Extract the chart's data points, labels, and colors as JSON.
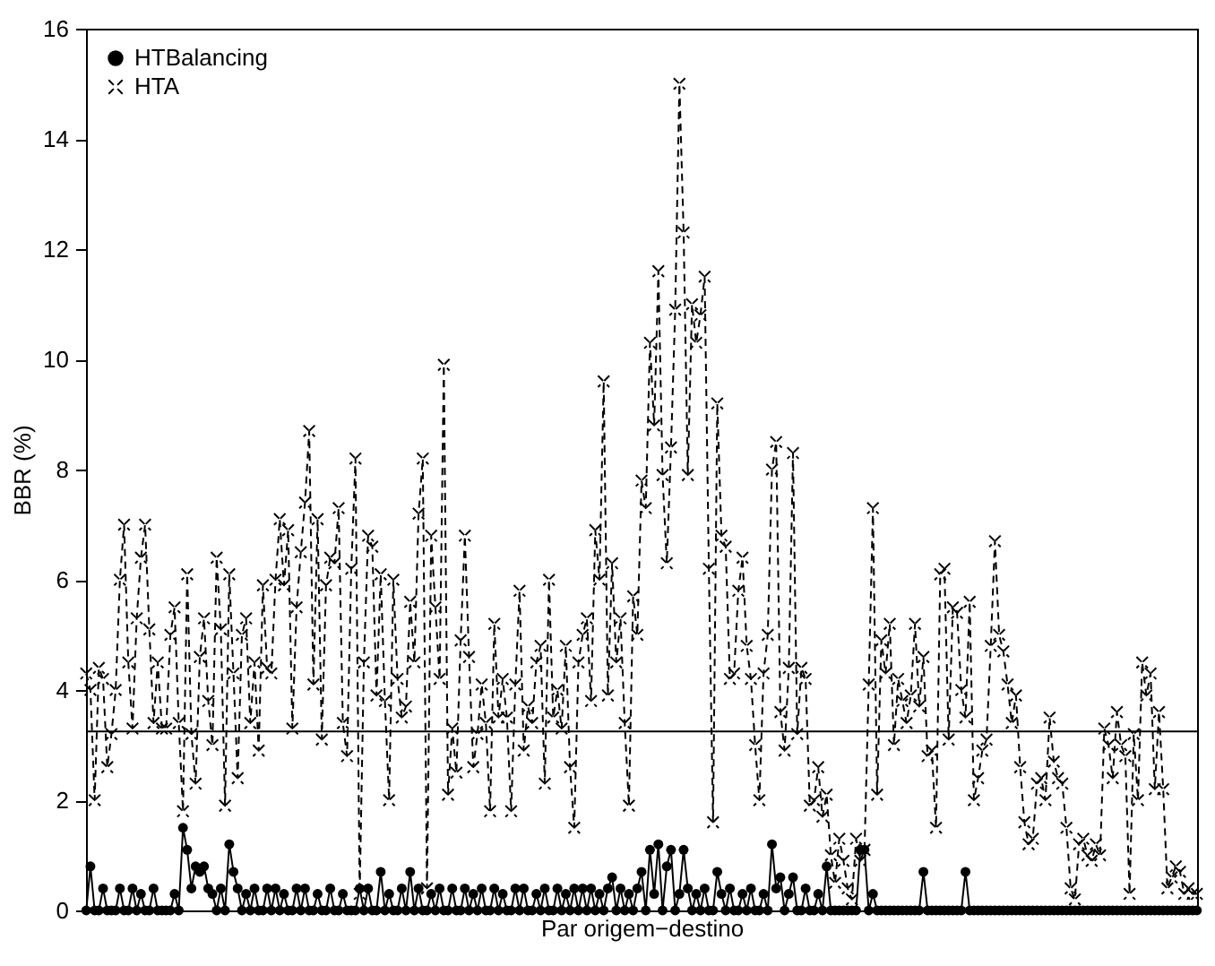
{
  "chart_data": {
    "type": "line",
    "xlabel": "Par origem−destino",
    "ylabel": "BBR (%)",
    "ylim": [
      0,
      16
    ],
    "yticks": [
      0,
      2,
      4,
      6,
      8,
      10,
      12,
      14,
      16
    ],
    "grid": false,
    "legend": "top left",
    "ref_lines": [
      {
        "axis": "y",
        "value": 3.25,
        "color": "#000000",
        "line_style": "solid"
      }
    ],
    "categories": [
      null,
      null,
      null,
      null,
      null,
      null,
      null,
      null,
      null,
      null,
      null,
      null,
      null,
      null,
      null,
      null,
      null,
      null,
      null,
      null,
      null,
      null,
      null,
      null,
      null,
      null,
      null,
      null,
      null,
      null,
      null,
      null,
      null,
      null,
      null,
      null,
      null,
      null,
      null,
      null,
      null,
      null,
      null,
      null,
      null,
      null,
      null,
      null,
      null,
      null,
      null,
      null,
      null,
      null,
      null,
      null,
      null,
      null,
      null,
      null,
      null,
      null,
      null,
      null,
      null,
      null,
      null,
      null,
      null,
      null,
      null,
      null,
      null,
      null,
      null,
      null,
      null,
      null,
      null,
      null,
      null,
      null,
      null,
      null,
      null,
      null,
      null,
      null,
      null,
      null,
      null,
      null,
      null,
      null,
      null,
      null,
      null,
      null,
      null,
      null,
      null,
      null,
      null,
      null,
      null,
      null,
      null,
      null,
      null,
      null,
      null,
      null,
      null,
      null,
      null,
      null,
      null,
      null,
      null,
      null,
      null,
      null,
      null,
      null,
      null,
      null,
      null,
      null,
      null,
      null,
      null,
      null,
      null,
      null,
      null,
      null,
      null,
      null,
      null,
      null,
      null,
      null,
      null,
      null,
      null,
      null,
      null,
      null,
      null,
      null,
      null,
      null,
      null,
      null,
      null,
      null,
      null,
      null,
      null,
      null,
      null,
      null,
      null,
      null,
      null,
      null,
      null,
      null,
      null,
      null,
      null,
      null,
      null,
      null,
      null,
      null,
      null,
      null,
      null,
      null,
      null,
      null,
      null,
      null,
      null,
      null,
      null,
      null,
      null,
      null,
      null,
      null,
      null,
      null,
      null,
      null,
      null,
      null,
      null,
      null,
      null,
      null,
      null,
      null,
      null,
      null,
      null,
      null,
      null,
      null,
      null,
      null,
      null,
      null,
      null,
      null,
      null,
      null,
      null,
      null,
      null,
      null,
      null,
      null,
      null,
      null,
      null,
      null,
      null,
      null,
      null,
      null,
      null,
      null,
      null,
      null,
      null,
      null,
      null,
      null,
      null,
      null,
      null,
      null,
      null,
      null,
      null,
      null,
      null,
      null,
      null,
      null,
      null,
      null,
      null,
      null,
      null,
      null,
      null,
      null,
      null,
      null,
      null,
      null,
      null
    ],
    "series": [
      {
        "name": "HTBalancing",
        "color": "#000000",
        "marker": "circle",
        "line_style": "solid",
        "values": [
          0,
          0.8,
          0,
          0,
          0.4,
          0,
          0,
          0,
          0.4,
          0,
          0,
          0.4,
          0,
          0.3,
          0,
          0,
          0.4,
          0,
          0,
          0,
          0,
          0.3,
          0,
          1.5,
          1.1,
          0.4,
          0.8,
          0.7,
          0.8,
          0.4,
          0.3,
          0,
          0.4,
          0,
          1.2,
          0.7,
          0.4,
          0,
          0.3,
          0,
          0.4,
          0,
          0,
          0.4,
          0,
          0.4,
          0,
          0.3,
          0,
          0,
          0.4,
          0,
          0.4,
          0,
          0,
          0.3,
          0,
          0,
          0.4,
          0,
          0,
          0.3,
          0,
          0,
          0,
          0.4,
          0,
          0.4,
          0,
          0,
          0.7,
          0,
          0.3,
          0,
          0,
          0.4,
          0,
          0.7,
          0,
          0.4,
          0,
          0,
          0.3,
          0,
          0.4,
          0,
          0,
          0.4,
          0,
          0,
          0.4,
          0,
          0.3,
          0,
          0.4,
          0,
          0,
          0.4,
          0,
          0.3,
          0,
          0,
          0.4,
          0,
          0.4,
          0,
          0,
          0.3,
          0,
          0.4,
          0,
          0,
          0.4,
          0,
          0.3,
          0,
          0.4,
          0,
          0.4,
          0,
          0.4,
          0,
          0.3,
          0,
          0.4,
          0.6,
          0,
          0.4,
          0,
          0.3,
          0,
          0.4,
          0.7,
          0,
          1.1,
          0.3,
          1.2,
          0,
          0.8,
          1.1,
          0,
          0.3,
          1.1,
          0.4,
          0,
          0.3,
          0,
          0.4,
          0,
          0,
          0.7,
          0.3,
          0,
          0.4,
          0,
          0,
          0.3,
          0,
          0.4,
          0,
          0,
          0.3,
          0,
          1.2,
          0.4,
          0.6,
          0,
          0.3,
          0.6,
          0,
          0,
          0.4,
          0,
          0,
          0.3,
          0,
          0.8,
          0,
          0,
          0,
          0,
          0,
          0,
          0,
          1.1,
          1.1,
          0,
          0.3,
          0,
          0,
          0,
          0,
          0,
          0,
          0,
          0,
          0,
          0,
          0,
          0.7,
          0,
          0,
          0,
          0,
          0,
          0,
          0,
          0,
          0,
          0.7,
          0,
          0,
          0,
          0,
          0,
          0,
          0,
          0,
          0,
          0,
          0,
          0,
          0,
          0,
          0,
          0,
          0,
          0,
          0,
          0,
          0,
          0,
          0,
          0,
          0,
          0,
          0,
          0,
          0,
          0,
          0,
          0,
          0,
          0,
          0,
          0,
          0,
          0,
          0,
          0,
          0,
          0,
          0,
          0,
          0,
          0,
          0,
          0,
          0,
          0,
          0,
          0,
          0,
          0,
          0
        ]
      },
      {
        "name": "HTA",
        "color": "#000000",
        "marker": "cross",
        "line_style": "dashed",
        "values": [
          4.3,
          4.0,
          2.0,
          4.4,
          4.2,
          2.6,
          3.2,
          4.0,
          6.0,
          7.0,
          4.5,
          3.3,
          5.3,
          6.4,
          7.0,
          5.1,
          3.4,
          4.5,
          3.3,
          3.3,
          5.0,
          5.5,
          3.4,
          1.8,
          6.1,
          3.2,
          2.3,
          4.6,
          5.3,
          3.8,
          3.0,
          6.4,
          5.1,
          1.9,
          6.1,
          4.3,
          2.4,
          5.0,
          5.3,
          3.4,
          4.5,
          2.9,
          5.9,
          4.4,
          4.3,
          6.0,
          7.1,
          5.9,
          6.9,
          3.3,
          5.5,
          6.5,
          7.4,
          8.7,
          4.1,
          7.1,
          3.1,
          5.9,
          6.4,
          6.3,
          7.3,
          3.4,
          2.8,
          6.2,
          8.2,
          0.3,
          4.5,
          6.8,
          6.6,
          3.9,
          6.1,
          3.8,
          2.0,
          6.0,
          4.2,
          3.5,
          3.7,
          5.6,
          4.5,
          7.2,
          8.2,
          0.4,
          6.8,
          5.5,
          4.2,
          9.9,
          2.1,
          3.3,
          2.5,
          4.9,
          6.8,
          4.6,
          2.6,
          3.2,
          4.1,
          3.4,
          1.8,
          5.2,
          3.5,
          4.2,
          3.5,
          1.8,
          4.1,
          5.8,
          2.9,
          3.7,
          3.4,
          4.5,
          4.8,
          2.3,
          6.0,
          3.5,
          4.0,
          3.3,
          4.8,
          2.6,
          1.5,
          4.5,
          5.0,
          5.3,
          3.8,
          6.9,
          6.0,
          9.6,
          3.9,
          6.3,
          4.5,
          5.3,
          3.4,
          1.9,
          5.7,
          5.0,
          7.8,
          7.3,
          10.3,
          8.8,
          11.6,
          7.9,
          6.3,
          8.4,
          10.9,
          15.0,
          12.3,
          7.9,
          11.0,
          10.3,
          10.8,
          11.5,
          6.2,
          1.6,
          9.2,
          6.8,
          6.6,
          4.2,
          4.3,
          5.8,
          6.4,
          4.8,
          4.2,
          3.0,
          2.0,
          4.3,
          5.0,
          8.0,
          8.5,
          3.6,
          2.9,
          4.4,
          8.3,
          3.2,
          4.4,
          4.2,
          1.9,
          2.0,
          2.6,
          1.7,
          2.1,
          1.0,
          0.5,
          1.3,
          0.9,
          0.4,
          0.2,
          1.3,
          0.9,
          1.1,
          4.1,
          7.3,
          2.1,
          4.9,
          4.3,
          5.2,
          3.0,
          4.2,
          3.8,
          3.4,
          3.9,
          5.2,
          3.7,
          4.6,
          2.8,
          2.9,
          1.5,
          6.1,
          6.2,
          3.1,
          5.5,
          5.4,
          4.0,
          3.5,
          5.6,
          2.0,
          2.4,
          2.9,
          3.1,
          4.8,
          6.7,
          5.0,
          4.7,
          4.1,
          3.4,
          3.9,
          2.6,
          1.6,
          1.2,
          1.3,
          2.3,
          2.4,
          2.0,
          3.5,
          2.7,
          2.4,
          2.3,
          1.5,
          0.4,
          0.2,
          1.2,
          1.3,
          1.0,
          0.9,
          1.2,
          1.0,
          3.3,
          3.0,
          2.4,
          3.6,
          3.0,
          2.8,
          0.3,
          3.2,
          2.0,
          4.5,
          3.9,
          4.3,
          2.2,
          3.6,
          2.2,
          0.4,
          0.6,
          0.8,
          0.7,
          0.3,
          0.4,
          0.3,
          0.3
        ]
      }
    ]
  }
}
